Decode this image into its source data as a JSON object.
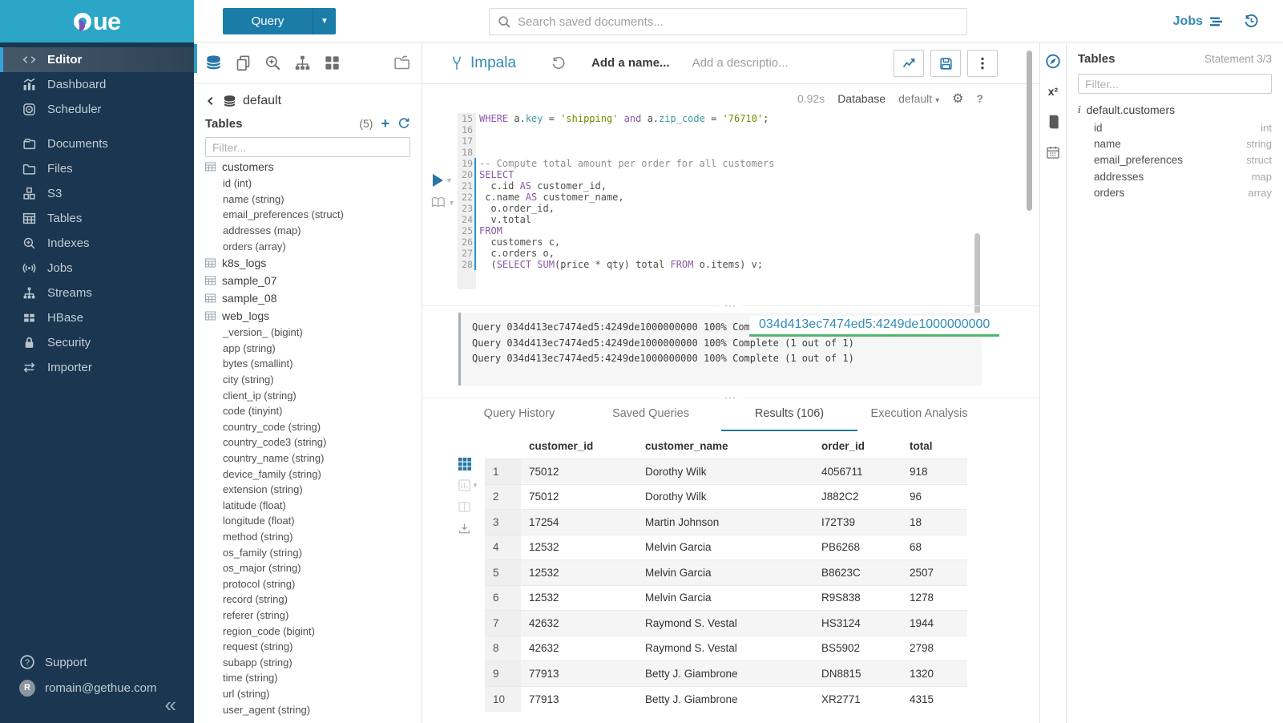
{
  "topbar": {
    "query_label": "Query",
    "search_placeholder": "Search saved documents...",
    "jobs_label": "Jobs"
  },
  "sidebar": {
    "items": [
      {
        "icon": "code",
        "label": "Editor",
        "active": true
      },
      {
        "icon": "dashboard",
        "label": "Dashboard"
      },
      {
        "icon": "scheduler",
        "label": "Scheduler"
      },
      {
        "icon": "documents",
        "label": "Documents",
        "gap": true
      },
      {
        "icon": "files",
        "label": "Files"
      },
      {
        "icon": "s3",
        "label": "S3"
      },
      {
        "icon": "tables",
        "label": "Tables"
      },
      {
        "icon": "indexes",
        "label": "Indexes"
      },
      {
        "icon": "jobs",
        "label": "Jobs"
      },
      {
        "icon": "streams",
        "label": "Streams"
      },
      {
        "icon": "hbase",
        "label": "HBase"
      },
      {
        "icon": "security",
        "label": "Security"
      },
      {
        "icon": "importer",
        "label": "Importer"
      }
    ],
    "support_label": "Support",
    "user_email": "romain@gethue.com"
  },
  "left_assist": {
    "database": "default",
    "section_title": "Tables",
    "count": "(5)",
    "filter_placeholder": "Filter...",
    "tables": [
      {
        "name": "customers",
        "columns": [
          "id (int)",
          "name (string)",
          "email_preferences (struct)",
          "addresses (map)",
          "orders (array)"
        ]
      },
      {
        "name": "k8s_logs",
        "columns": []
      },
      {
        "name": "sample_07",
        "columns": []
      },
      {
        "name": "sample_08",
        "columns": []
      },
      {
        "name": "web_logs",
        "columns": [
          "_version_ (bigint)",
          "app (string)",
          "bytes (smallint)",
          "city (string)",
          "client_ip (string)",
          "code (tinyint)",
          "country_code (string)",
          "country_code3 (string)",
          "country_name (string)",
          "device_family (string)",
          "extension (string)",
          "latitude (float)",
          "longitude (float)",
          "method (string)",
          "os_family (string)",
          "os_major (string)",
          "protocol (string)",
          "record (string)",
          "referer (string)",
          "region_code (bigint)",
          "request (string)",
          "subapp (string)",
          "time (string)",
          "url (string)",
          "user_agent (string)"
        ]
      }
    ]
  },
  "editor": {
    "engine": "Impala",
    "name_placeholder": "Add a name...",
    "description_placeholder": "Add a descriptio...",
    "exec_time": "0.92s",
    "database_label": "Database",
    "database_value": "default",
    "code_lines": [
      {
        "n": 15,
        "seg": [
          [
            "k",
            "WHERE"
          ],
          [
            "d",
            " a."
          ],
          [
            "f",
            "key"
          ],
          [
            "d",
            " = "
          ],
          [
            "s",
            "'shipping'"
          ],
          [
            "d",
            " "
          ],
          [
            "k",
            "and"
          ],
          [
            "d",
            " a."
          ],
          [
            "f",
            "zip_code"
          ],
          [
            "d",
            " = "
          ],
          [
            "s",
            "'76710'"
          ],
          [
            "d",
            ";"
          ]
        ]
      },
      {
        "n": 16,
        "seg": []
      },
      {
        "n": 17,
        "seg": []
      },
      {
        "n": 18,
        "seg": []
      },
      {
        "n": 19,
        "seg": [
          [
            "c",
            "-- Compute total amount per order for all customers"
          ]
        ]
      },
      {
        "n": 20,
        "seg": [
          [
            "k",
            "SELECT"
          ]
        ]
      },
      {
        "n": 21,
        "seg": [
          [
            "d",
            "  c.id "
          ],
          [
            "k",
            "AS"
          ],
          [
            "d",
            " customer_id,"
          ]
        ]
      },
      {
        "n": 22,
        "seg": [
          [
            "d",
            " c.name "
          ],
          [
            "k",
            "AS"
          ],
          [
            "d",
            " customer_name,"
          ]
        ]
      },
      {
        "n": 23,
        "seg": [
          [
            "d",
            "  o.order_id,"
          ]
        ]
      },
      {
        "n": 24,
        "seg": [
          [
            "d",
            "  v.total"
          ]
        ]
      },
      {
        "n": 25,
        "seg": [
          [
            "k",
            "FROM"
          ]
        ]
      },
      {
        "n": 26,
        "seg": [
          [
            "d",
            "  customers c,"
          ]
        ]
      },
      {
        "n": 27,
        "seg": [
          [
            "d",
            "  c.orders o,"
          ]
        ]
      },
      {
        "n": 28,
        "seg": [
          [
            "d",
            "  ("
          ],
          [
            "k",
            "SELECT"
          ],
          [
            "d",
            " "
          ],
          [
            "k",
            "SUM"
          ],
          [
            "d",
            "(price * qty) total "
          ],
          [
            "k",
            "FROM"
          ],
          [
            "d",
            " o.items) v;"
          ]
        ]
      }
    ],
    "logs": [
      "Query 034d413ec7474ed5:4249de1000000000 100% Complete (1 out of 1)",
      "Query 034d413ec7474ed5:4249de1000000000 100% Complete (1 out of 1)",
      "Query 034d413ec7474ed5:4249de1000000000 100% Complete (1 out of 1)"
    ],
    "query_id_overlay": "034d413ec7474ed5:4249de1000000000"
  },
  "tabs": [
    {
      "label": "Query History"
    },
    {
      "label": "Saved Queries"
    },
    {
      "label": "Results (106)",
      "active": true
    },
    {
      "label": "Execution Analysis"
    }
  ],
  "results": {
    "headers": [
      "customer_id",
      "customer_name",
      "order_id",
      "total"
    ],
    "rows": [
      [
        "1",
        "75012",
        "Dorothy Wilk",
        "4056711",
        "918"
      ],
      [
        "2",
        "75012",
        "Dorothy Wilk",
        "J882C2",
        "96"
      ],
      [
        "3",
        "17254",
        "Martin Johnson",
        "I72T39",
        "18"
      ],
      [
        "4",
        "12532",
        "Melvin Garcia",
        "PB6268",
        "68"
      ],
      [
        "5",
        "12532",
        "Melvin Garcia",
        "B8623C",
        "2507"
      ],
      [
        "6",
        "12532",
        "Melvin Garcia",
        "R9S838",
        "1278"
      ],
      [
        "7",
        "42632",
        "Raymond S. Vestal",
        "HS3124",
        "1944"
      ],
      [
        "8",
        "42632",
        "Raymond S. Vestal",
        "BS5902",
        "2798"
      ],
      [
        "9",
        "77913",
        "Betty J. Giambrone",
        "DN8815",
        "1320"
      ],
      [
        "10",
        "77913",
        "Betty J. Giambrone",
        "XR2771",
        "4315"
      ]
    ]
  },
  "right_strip": {
    "functions_label": "x²"
  },
  "right_assist": {
    "title": "Tables",
    "statement_label": "Statement 3/3",
    "filter_placeholder": "Filter...",
    "table_name": "default.customers",
    "columns": [
      {
        "name": "id",
        "type": "int"
      },
      {
        "name": "name",
        "type": "string"
      },
      {
        "name": "email_preferences",
        "type": "struct"
      },
      {
        "name": "addresses",
        "type": "map"
      },
      {
        "name": "orders",
        "type": "array"
      }
    ]
  },
  "colors": {
    "accent": "#338bb8",
    "topbar_cyan": "#2ba6c6",
    "button_blue": "#1b7da7",
    "tab_underline": "#1d7ba3",
    "green_underline": "#50b56e",
    "sidebar_bg": "#1a3650"
  }
}
